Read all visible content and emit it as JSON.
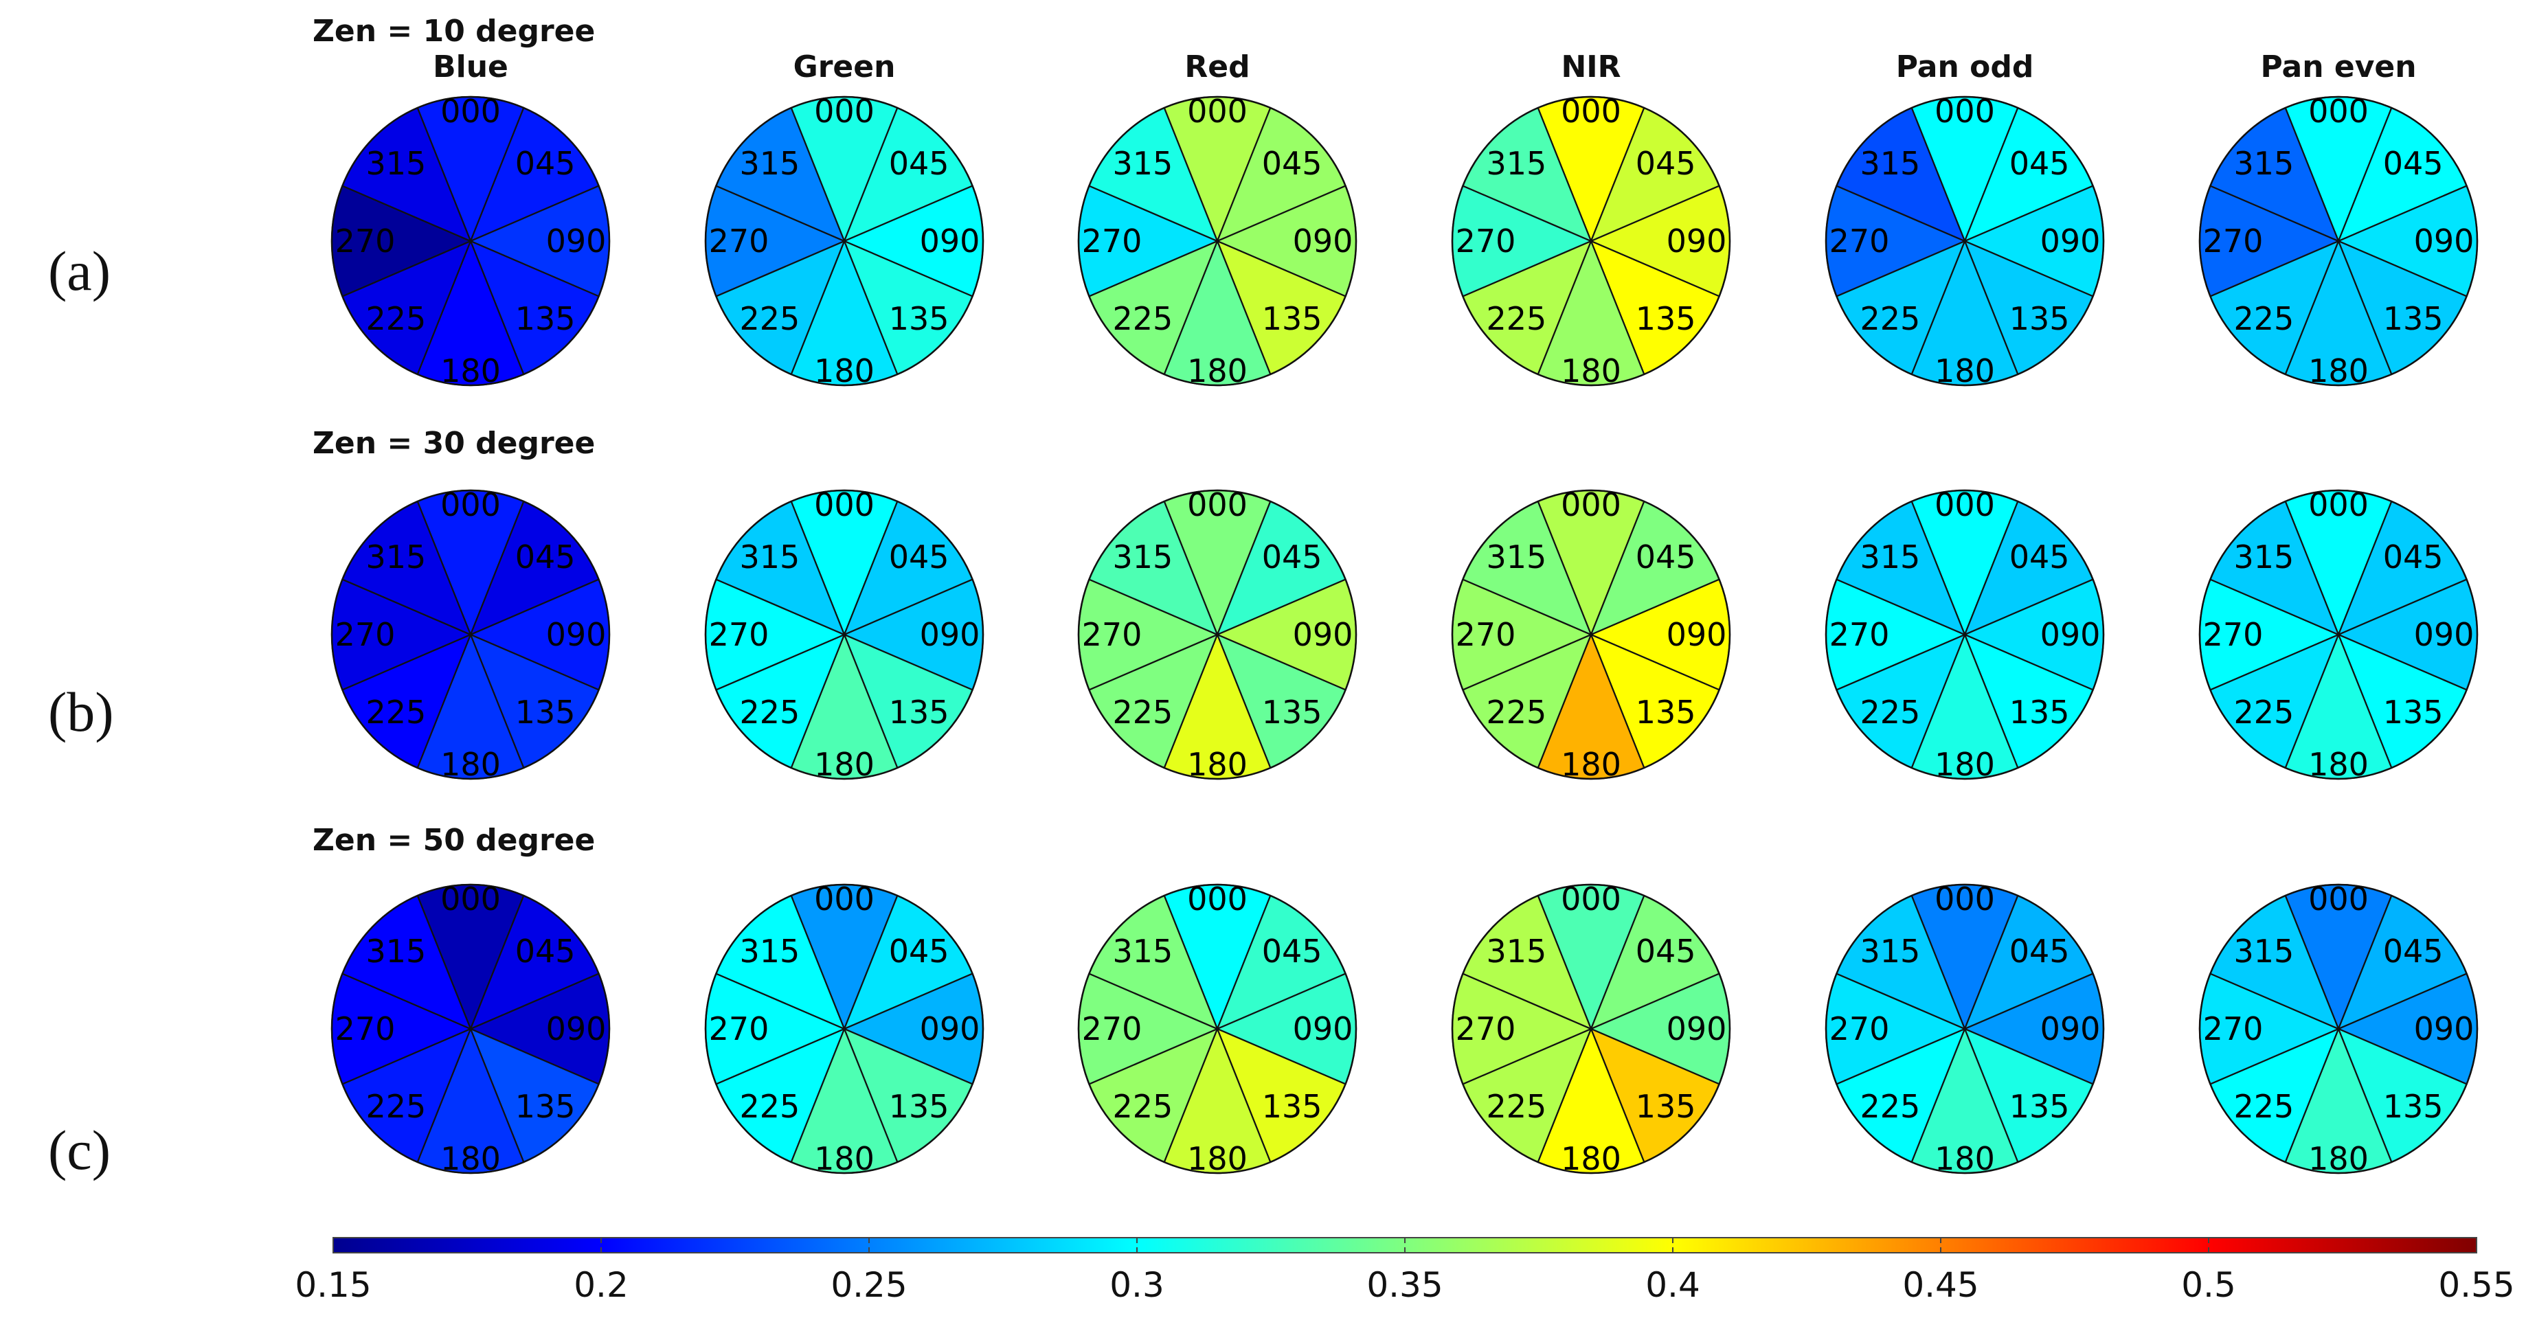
{
  "chart_data": {
    "type": "polar-sector-heatmap",
    "row_labels": [
      "(a)",
      "(b)",
      "(c)"
    ],
    "zenith_titles": [
      "Zen = 10 degree",
      "Zen = 30 degree",
      "Zen = 50 degree"
    ],
    "bands": [
      "Blue",
      "Green",
      "Red",
      "NIR",
      "Pan odd",
      "Pan even"
    ],
    "azimuth_labels": [
      "000",
      "045",
      "090",
      "135",
      "180",
      "225",
      "270",
      "315"
    ],
    "colorbar": {
      "min": 0.15,
      "max": 0.55,
      "ticks": [
        "0.15",
        "0.2",
        "0.25",
        "0.3",
        "0.35",
        "0.4",
        "0.45",
        "0.5",
        "0.55"
      ]
    },
    "values": [
      [
        [
          0.21,
          0.21,
          0.22,
          0.21,
          0.2,
          0.19,
          0.16,
          0.19
        ],
        [
          0.31,
          0.31,
          0.3,
          0.31,
          0.29,
          0.28,
          0.25,
          0.25
        ],
        [
          0.37,
          0.36,
          0.36,
          0.38,
          0.34,
          0.35,
          0.29,
          0.31
        ],
        [
          0.4,
          0.38,
          0.39,
          0.4,
          0.36,
          0.37,
          0.32,
          0.33
        ],
        [
          0.3,
          0.3,
          0.29,
          0.28,
          0.28,
          0.28,
          0.24,
          0.23
        ],
        [
          0.3,
          0.3,
          0.29,
          0.28,
          0.28,
          0.28,
          0.24,
          0.24
        ]
      ],
      [
        [
          0.21,
          0.19,
          0.21,
          0.22,
          0.22,
          0.2,
          0.19,
          0.19
        ],
        [
          0.3,
          0.28,
          0.28,
          0.32,
          0.33,
          0.3,
          0.3,
          0.28
        ],
        [
          0.35,
          0.32,
          0.37,
          0.34,
          0.39,
          0.35,
          0.35,
          0.33
        ],
        [
          0.37,
          0.35,
          0.4,
          0.4,
          0.43,
          0.36,
          0.36,
          0.35
        ],
        [
          0.3,
          0.28,
          0.29,
          0.3,
          0.31,
          0.29,
          0.3,
          0.28
        ],
        [
          0.3,
          0.28,
          0.28,
          0.3,
          0.31,
          0.29,
          0.3,
          0.28
        ]
      ],
      [
        [
          0.17,
          0.19,
          0.18,
          0.23,
          0.22,
          0.21,
          0.2,
          0.2
        ],
        [
          0.26,
          0.29,
          0.27,
          0.33,
          0.33,
          0.3,
          0.3,
          0.3
        ],
        [
          0.3,
          0.32,
          0.32,
          0.39,
          0.38,
          0.36,
          0.35,
          0.35
        ],
        [
          0.33,
          0.35,
          0.34,
          0.42,
          0.4,
          0.37,
          0.37,
          0.37
        ],
        [
          0.25,
          0.27,
          0.26,
          0.31,
          0.32,
          0.3,
          0.29,
          0.28
        ],
        [
          0.25,
          0.27,
          0.26,
          0.31,
          0.32,
          0.3,
          0.29,
          0.28
        ]
      ]
    ]
  }
}
